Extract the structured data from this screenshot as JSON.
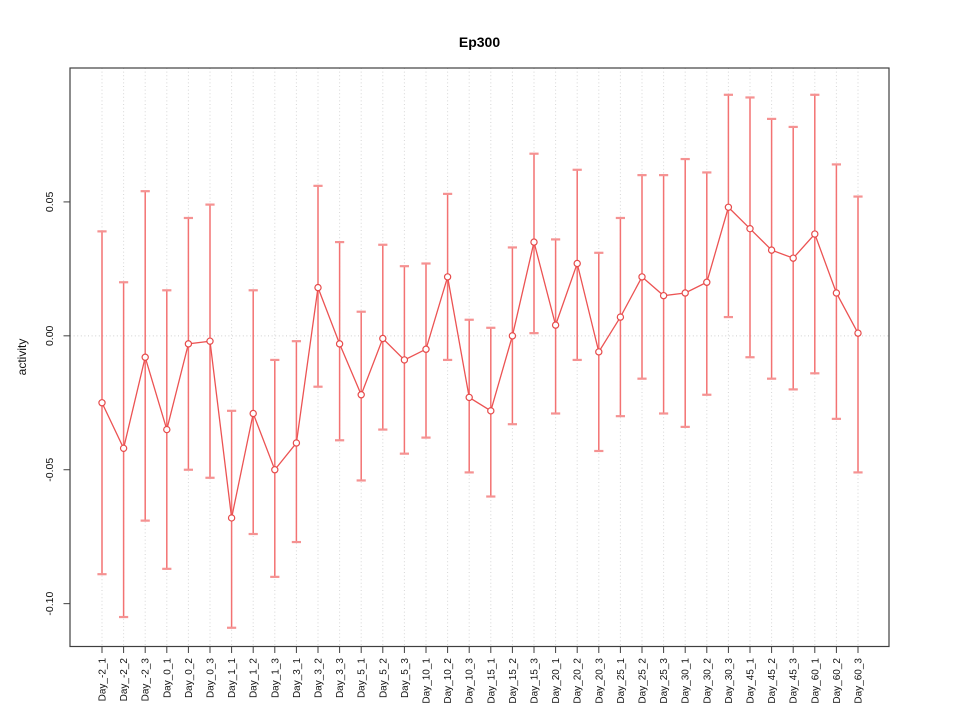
{
  "figure": {
    "title": "Ep300",
    "ylabel": "activity"
  },
  "chart_data": {
    "type": "line",
    "title": "Ep300",
    "xlabel": "",
    "ylabel": "activity",
    "legend": "none",
    "grid": {
      "vertical_dotted_per_category": true,
      "horizontal_dotted_at_zero": true
    },
    "point_style": "open-circle",
    "error_bars": true,
    "x_label_rotation_deg": 90,
    "y_label_rotation_deg": 90,
    "categories": [
      "Day_-2_1",
      "Day_-2_2",
      "Day_-2_3",
      "Day_0_1",
      "Day_0_2",
      "Day_0_3",
      "Day_1_1",
      "Day_1_2",
      "Day_1_3",
      "Day_3_1",
      "Day_3_2",
      "Day_3_3",
      "Day_5_1",
      "Day_5_2",
      "Day_5_3",
      "Day_10_1",
      "Day_10_2",
      "Day_10_3",
      "Day_15_1",
      "Day_15_2",
      "Day_15_3",
      "Day_20_1",
      "Day_20_2",
      "Day_20_3",
      "Day_25_1",
      "Day_25_2",
      "Day_25_3",
      "Day_30_1",
      "Day_30_2",
      "Day_30_3",
      "Day_45_1",
      "Day_45_2",
      "Day_45_3",
      "Day_60_1",
      "Day_60_2",
      "Day_60_3"
    ],
    "series": [
      {
        "name": "activity_mean",
        "values": [
          -0.025,
          -0.042,
          -0.008,
          -0.035,
          -0.003,
          -0.002,
          -0.068,
          -0.029,
          -0.05,
          -0.04,
          0.018,
          -0.003,
          -0.022,
          -0.001,
          -0.009,
          -0.005,
          0.022,
          -0.023,
          -0.028,
          0.0,
          0.035,
          0.004,
          0.027,
          -0.006,
          0.007,
          0.022,
          0.015,
          0.016,
          0.02,
          0.048,
          0.04,
          0.032,
          0.029,
          0.038,
          0.016,
          0.001
        ]
      },
      {
        "name": "error_bar_lower",
        "values": [
          -0.089,
          -0.105,
          -0.069,
          -0.087,
          -0.05,
          -0.053,
          -0.109,
          -0.074,
          -0.09,
          -0.077,
          -0.019,
          -0.039,
          -0.054,
          -0.035,
          -0.044,
          -0.038,
          -0.009,
          -0.051,
          -0.06,
          -0.033,
          0.001,
          -0.029,
          -0.009,
          -0.043,
          -0.03,
          -0.016,
          -0.029,
          -0.034,
          -0.022,
          0.007,
          -0.008,
          -0.016,
          -0.02,
          -0.014,
          -0.031,
          -0.051
        ]
      },
      {
        "name": "error_bar_upper",
        "values": [
          0.039,
          0.02,
          0.054,
          0.017,
          0.044,
          0.049,
          -0.028,
          0.017,
          -0.009,
          -0.002,
          0.056,
          0.035,
          0.009,
          0.034,
          0.026,
          0.027,
          0.053,
          0.006,
          0.003,
          0.033,
          0.068,
          0.036,
          0.062,
          0.031,
          0.044,
          0.06,
          0.06,
          0.066,
          0.061,
          0.09,
          0.089,
          0.081,
          0.078,
          0.09,
          0.064,
          0.052
        ]
      }
    ],
    "ylim": [
      -0.116,
      0.1
    ],
    "yticks": {
      "values": [
        0.05,
        0.0,
        -0.05,
        -0.1
      ],
      "labels": [
        "0.05",
        "0.00",
        "-0.05",
        "-0.10"
      ]
    },
    "colors": {
      "line": "#ec5353",
      "point": "#e64a4a",
      "error_bar": "#f37272",
      "error_cap": "#f59292",
      "grid": "#d6d6d6",
      "zero_line": "#cfcfcf",
      "axis": "#3f3f3f",
      "text": "#111111",
      "background": "#ffffff"
    }
  }
}
